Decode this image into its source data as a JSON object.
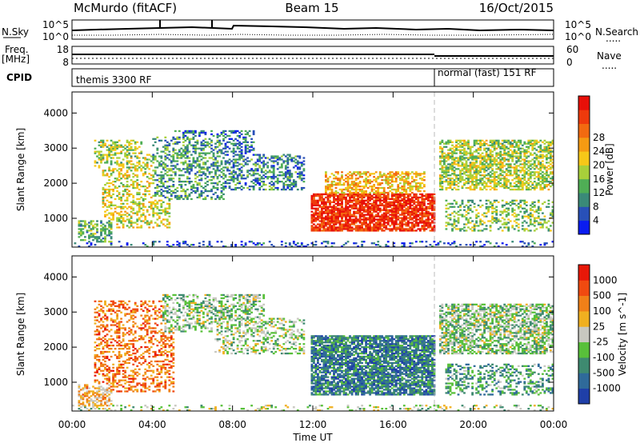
{
  "header": {
    "station": "McMurdo (fitACF)",
    "beam": "Beam 15",
    "date": "16/Oct/2015"
  },
  "strips": {
    "nsky_label": "N.Sky",
    "nsky_ticks": [
      "10^5",
      "10^0"
    ],
    "nsearch_label": "N.Search",
    "nsearch_ticks": [
      "10^5",
      "10^0"
    ],
    "freq_label_1": "Freq.",
    "freq_label_2": "[MHz]",
    "freq_ticks": [
      "18",
      "8"
    ],
    "nave_label": "Nave",
    "nave_ticks": [
      "60",
      "0"
    ],
    "cpid_label": "CPID",
    "cpid_segments": [
      "themis 3300 RF",
      "normal (fast) 151 RF"
    ],
    "line_styles": "....."
  },
  "chart_data": [
    {
      "type": "heatmap",
      "title": "",
      "xlabel": "",
      "ylabel": "Slant Range [km]",
      "x_ticks": [
        "00:00",
        "04:00",
        "08:00",
        "12:00",
        "16:00",
        "20:00",
        "00:00"
      ],
      "y_ticks": [
        "1000",
        "2000",
        "3000",
        "4000"
      ],
      "xlim_hours": [
        0,
        24
      ],
      "ylim_km": [
        180,
        4600
      ],
      "colorbar_label": "Power [dB]",
      "colorbar_ticks": [
        "4",
        "8",
        "12",
        "16",
        "20",
        "24",
        "28"
      ],
      "colorbar_colors": [
        "#0a1cf0",
        "#2850b8",
        "#3a8a78",
        "#4fae55",
        "#a8d03a",
        "#f6c818",
        "#f59a12",
        "#f26a10",
        "#ee3a0c",
        "#e80f08"
      ],
      "value_range": [
        0,
        30
      ],
      "regions": [
        {
          "t0": 0.3,
          "t1": 2.0,
          "r0": 300,
          "r1": 900,
          "level": 0.35,
          "density": 0.55
        },
        {
          "t0": 1.0,
          "t1": 3.5,
          "r0": 2400,
          "r1": 3200,
          "level": 0.45,
          "density": 0.45
        },
        {
          "t0": 1.5,
          "t1": 4.8,
          "r0": 700,
          "r1": 2800,
          "level": 0.5,
          "density": 0.35
        },
        {
          "t0": 4.0,
          "t1": 7.5,
          "r0": 1500,
          "r1": 3300,
          "level": 0.3,
          "density": 0.4
        },
        {
          "t0": 5.0,
          "t1": 9.0,
          "r0": 2700,
          "r1": 3500,
          "level": 0.2,
          "density": 0.4
        },
        {
          "t0": 7.0,
          "t1": 11.5,
          "r0": 1800,
          "r1": 2800,
          "level": 0.25,
          "density": 0.4
        },
        {
          "t0": 11.8,
          "t1": 18.0,
          "r0": 600,
          "r1": 1700,
          "level": 0.88,
          "density": 0.8
        },
        {
          "t0": 12.5,
          "t1": 17.5,
          "r0": 1600,
          "r1": 2300,
          "level": 0.6,
          "density": 0.55
        },
        {
          "t0": 18.2,
          "t1": 24.0,
          "r0": 1800,
          "r1": 3200,
          "level": 0.45,
          "density": 0.6
        },
        {
          "t0": 18.5,
          "t1": 24.0,
          "r0": 600,
          "r1": 1500,
          "level": 0.4,
          "density": 0.35
        },
        {
          "t0": 0.0,
          "t1": 24.0,
          "r0": 180,
          "r1": 330,
          "level": 0.15,
          "density": 0.2
        }
      ]
    },
    {
      "type": "heatmap",
      "title": "",
      "xlabel": "Time UT",
      "ylabel": "Slant Range [km]",
      "x_ticks": [
        "00:00",
        "04:00",
        "08:00",
        "12:00",
        "16:00",
        "20:00",
        "00:00"
      ],
      "y_ticks": [
        "1000",
        "2000",
        "3000",
        "4000"
      ],
      "xlim_hours": [
        0,
        24
      ],
      "ylim_km": [
        180,
        4600
      ],
      "colorbar_label": "Velocity [m s^-1]",
      "colorbar_ticks": [
        "1000",
        "500",
        "100",
        "25",
        "-25",
        "-100",
        "-500",
        "-1000"
      ],
      "colorbar_colors": [
        "#1f3fa8",
        "#2f6a9a",
        "#3e8a70",
        "#58c03a",
        "#c8c8c0",
        "#f0b020",
        "#f08018",
        "#f04a10",
        "#e81808"
      ],
      "value_range": [
        -1000,
        1000
      ],
      "regions": [
        {
          "t0": 0.3,
          "t1": 2.0,
          "r0": 300,
          "r1": 900,
          "level": 0.62,
          "density": 0.5
        },
        {
          "t0": 1.0,
          "t1": 5.0,
          "r0": 700,
          "r1": 3300,
          "level": 0.75,
          "density": 0.35
        },
        {
          "t0": 4.5,
          "t1": 9.5,
          "r0": 2400,
          "r1": 3500,
          "level": 0.42,
          "density": 0.45
        },
        {
          "t0": 7.0,
          "t1": 11.5,
          "r0": 1800,
          "r1": 2800,
          "level": 0.45,
          "density": 0.35
        },
        {
          "t0": 11.8,
          "t1": 18.0,
          "r0": 600,
          "r1": 2300,
          "level": 0.22,
          "density": 0.8
        },
        {
          "t0": 18.2,
          "t1": 24.0,
          "r0": 1800,
          "r1": 3200,
          "level": 0.42,
          "density": 0.6
        },
        {
          "t0": 18.5,
          "t1": 24.0,
          "r0": 600,
          "r1": 1500,
          "level": 0.3,
          "density": 0.35
        },
        {
          "t0": 0.0,
          "t1": 24.0,
          "r0": 180,
          "r1": 330,
          "level": 0.45,
          "density": 0.2
        }
      ]
    }
  ]
}
